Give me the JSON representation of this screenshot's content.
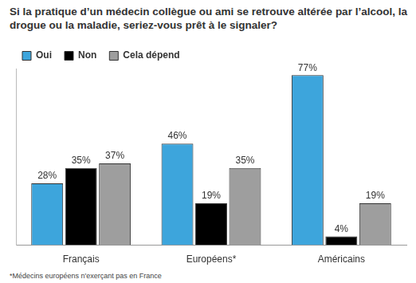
{
  "chart_data": {
    "type": "bar",
    "title": "Si la pratique d’un médecin collègue ou ami se retrouve altérée par l’alcool, la drogue ou la maladie, seriez-vous prêt à le signaler?",
    "annotations": [
      "*Médecins européens n'exerçant pas en France"
    ],
    "categories": [
      "Français",
      "Européens*",
      "Américains"
    ],
    "series": [
      {
        "name": "Oui",
        "color": "#3da5dc",
        "values": [
          28,
          46,
          77
        ],
        "value_labels": [
          "28%",
          "46%",
          "77%"
        ]
      },
      {
        "name": "Non",
        "color": "#000000",
        "values": [
          35,
          19,
          4
        ],
        "value_labels": [
          "35%",
          "19%",
          "4%"
        ]
      },
      {
        "name": "Cela dépend",
        "color": "#9e9e9e",
        "values": [
          37,
          35,
          19
        ],
        "value_labels": [
          "37%",
          "35%",
          "19%"
        ]
      }
    ],
    "ylim": [
      0,
      80
    ],
    "grid": false,
    "legend": "top-left",
    "data_labels": true,
    "tick_labels": "x"
  }
}
